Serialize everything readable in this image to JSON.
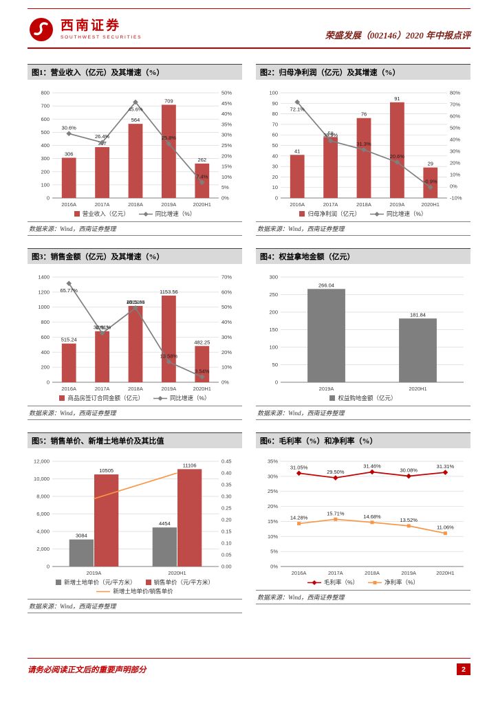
{
  "page": {
    "header": {
      "brand_name": "西南证券",
      "brand_sub": "SOUTHWEST SECURITIES",
      "report_title": "荣盛发展（002146）2020 年中报点评"
    },
    "footer": {
      "disclaimer": "请务必阅读正文后的重要声明部分",
      "page_number": "2"
    },
    "colors": {
      "accent_red": "#C00000",
      "bar_red": "#BE4B48",
      "bar_gray": "#7F7F7F",
      "line_gray": "#7F7F7F",
      "line_orange": "#F79646",
      "line_red": "#C00000"
    }
  },
  "figures": [
    {
      "title": "图1：营业收入（亿元）及其增速（%）",
      "source": "数据来源：Wind，西南证券整理"
    },
    {
      "title": "图2：归母净利润（亿元）及其增速（%）",
      "source": "数据来源：Wind，西南证券整理"
    },
    {
      "title": "图3：销售金额（亿元）及其增速（%）",
      "source": "数据来源：Wind，西南证券整理"
    },
    {
      "title": "图4：权益拿地金额（亿元）",
      "source": "数据来源：Wind，西南证券整理"
    },
    {
      "title": "图5：销售单价、新增土地单价及其比值",
      "source": "数据来源：Wind，西南证券整理"
    },
    {
      "title": "图6：毛利率（%）和净利率（%）",
      "source": "数据来源：Wind，西南证券整理"
    }
  ],
  "chart_data": [
    {
      "type": "bar",
      "title": "营业收入（亿元）及其增速（%）",
      "categories": [
        "2016A",
        "2017A",
        "2018A",
        "2019A",
        "2020H1"
      ],
      "left_axis": {
        "min": 0,
        "max": 800,
        "step": 100,
        "format": "int"
      },
      "right_axis": {
        "min": 0,
        "max": 50,
        "step": 5,
        "format": "pct"
      },
      "bar_series": [
        {
          "name": "营业收入（亿元）",
          "color": "#BE4B48",
          "values": [
            306,
            387,
            564,
            709,
            262
          ],
          "labels": [
            "306",
            "387",
            "564",
            "709",
            "262"
          ]
        }
      ],
      "line_series": [
        {
          "name": "同比增速（%）",
          "color": "#7F7F7F",
          "marker": "diamond",
          "axis": "right",
          "values": [
            30.6,
            26.4,
            45.6,
            25.8,
            7.4
          ],
          "labels": [
            "30.6%",
            "26.4%",
            "45.6%",
            "25.8%",
            "7.4%"
          ]
        }
      ]
    },
    {
      "type": "bar",
      "title": "归母净利润（亿元）及其增速（%）",
      "categories": [
        "2016A",
        "2017A",
        "2018A",
        "2019A",
        "2020H1"
      ],
      "left_axis": {
        "min": 0,
        "max": 100,
        "step": 10,
        "format": "int"
      },
      "right_axis": {
        "min": -10,
        "max": 80,
        "step": 10,
        "format": "pct"
      },
      "bar_series": [
        {
          "name": "归母净利润（亿元）",
          "color": "#BE4B48",
          "values": [
            41,
            58,
            76,
            91,
            29
          ],
          "labels": [
            "41",
            "58",
            "76",
            "91",
            "29"
          ]
        }
      ],
      "line_series": [
        {
          "name": "同比增速（%）",
          "color": "#7F7F7F",
          "marker": "diamond",
          "axis": "right",
          "values": [
            72.1,
            38.9,
            31.3,
            20.6,
            -0.9
          ],
          "labels": [
            "72.1%",
            "38.9%",
            "31.3%",
            "20.6%",
            "-0.9%"
          ]
        }
      ]
    },
    {
      "type": "bar",
      "title": "销售金额（亿元）及其增速（%）",
      "categories": [
        "2016A",
        "2017A",
        "2018A",
        "2019A",
        "2020H1"
      ],
      "left_axis": {
        "min": 0,
        "max": 1400,
        "step": 200,
        "format": "int"
      },
      "right_axis": {
        "min": 0,
        "max": 70,
        "step": 10,
        "format": "pct"
      },
      "bar_series": [
        {
          "name": "商品房签订合同金额（亿元）",
          "color": "#BE4B48",
          "values": [
            515.24,
            679.3,
            1015.63,
            1153.56,
            482.25
          ],
          "labels": [
            "515.24",
            "679.3",
            "1015.63",
            "1153.56",
            "482.25"
          ]
        }
      ],
      "line_series": [
        {
          "name": "同比增速（%）",
          "color": "#7F7F7F",
          "marker": "diamond",
          "axis": "right",
          "values": [
            65.77,
            32.61,
            49.51,
            13.58,
            3.54
          ],
          "labels": [
            "65.77%",
            "32.61%",
            "49.51%",
            "13.58%",
            "3.54%"
          ]
        }
      ]
    },
    {
      "type": "bar",
      "title": "权益拿地金额（亿元）",
      "categories": [
        "2019A",
        "2020H1"
      ],
      "left_axis": {
        "min": 0,
        "max": 300,
        "step": 50,
        "format": "int"
      },
      "bar_series": [
        {
          "name": "权益购地金额（亿元）",
          "color": "#7F7F7F",
          "values": [
            266.04,
            181.84
          ],
          "labels": [
            "266.04",
            "181.84"
          ]
        }
      ],
      "line_series": []
    },
    {
      "type": "bar",
      "title": "销售单价、新增土地单价及其比值",
      "categories": [
        "2019A",
        "2020H1"
      ],
      "left_axis": {
        "min": 0,
        "max": 12000,
        "step": 2000,
        "format": "thousand"
      },
      "right_axis": {
        "min": 0,
        "max": 0.45,
        "step": 0.05,
        "format": "dec2"
      },
      "bar_series": [
        {
          "name": "新增土地单价（元/平方米）",
          "color": "#7F7F7F",
          "values": [
            3084,
            4454
          ],
          "labels": [
            "3084",
            "4454"
          ]
        },
        {
          "name": "销售单价（元/平方米）",
          "color": "#BE4B48",
          "values": [
            10505,
            11106
          ],
          "labels": [
            "10505",
            "11106"
          ]
        }
      ],
      "line_series": [
        {
          "name": "新增土地单价/销售单价",
          "color": "#F79646",
          "marker": "none",
          "axis": "right",
          "values": [
            0.29,
            0.4
          ],
          "labels": []
        }
      ]
    },
    {
      "type": "line",
      "title": "毛利率（%）和净利率（%）",
      "categories": [
        "2016A",
        "2017A",
        "2018A",
        "2019A",
        "2020H1"
      ],
      "left_axis": {
        "min": 0,
        "max": 35,
        "step": 5,
        "format": "pct"
      },
      "bar_series": [],
      "line_series": [
        {
          "name": "毛利率（%）",
          "color": "#C00000",
          "marker": "diamond",
          "axis": "left",
          "values": [
            31.05,
            29.5,
            31.46,
            30.08,
            31.31
          ],
          "labels": [
            "31.05%",
            "29.50%",
            "31.46%",
            "30.08%",
            "31.31%"
          ]
        },
        {
          "name": "净利率（%）",
          "color": "#F79646",
          "marker": "square",
          "axis": "left",
          "values": [
            14.28,
            15.71,
            14.68,
            13.52,
            11.06
          ],
          "labels": [
            "14.28%",
            "15.71%",
            "14.68%",
            "13.52%",
            "11.06%"
          ]
        }
      ]
    }
  ]
}
